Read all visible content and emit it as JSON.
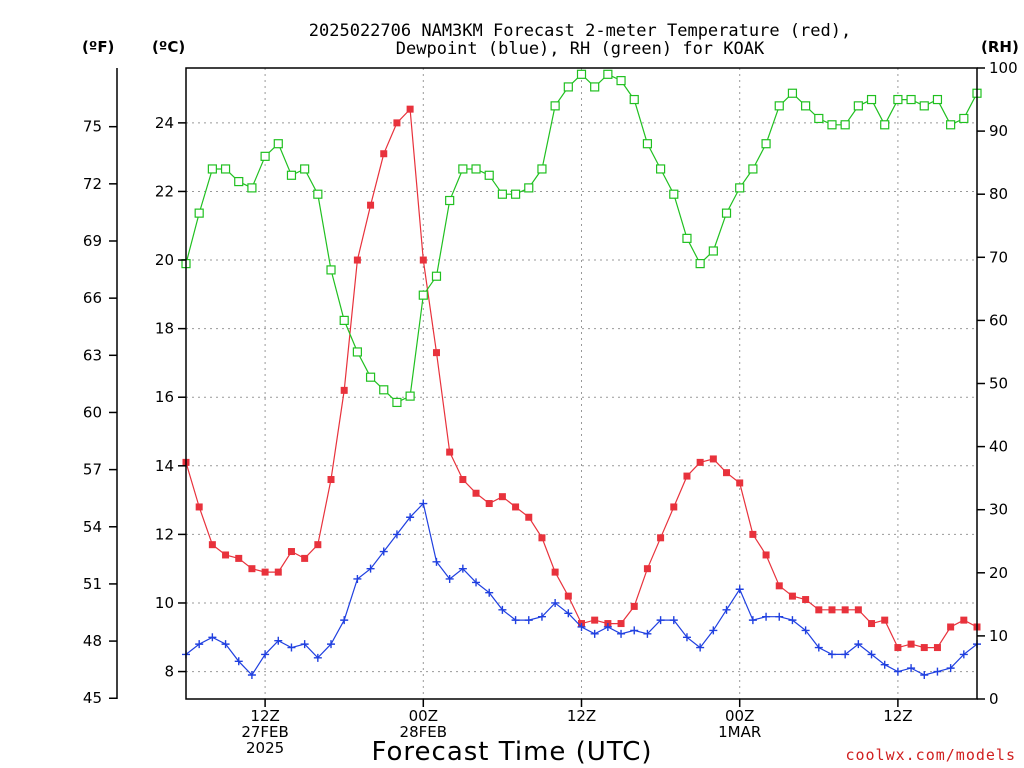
{
  "chart_data": {
    "type": "line",
    "title_line1": "2025022706 NAM3KM Forecast 2-meter Temperature (red),",
    "title_line2": "Dewpoint (blue), RH (green) for KOAK",
    "left_unit_f": "(ºF)",
    "left_unit_c": "(ºC)",
    "right_unit": "(RH)",
    "xlabel": "Forecast Time (UTC)",
    "credit": "coolwx.com/models",
    "x_range_hours": [
      6,
      66
    ],
    "celsius_range": [
      7.2,
      25.6
    ],
    "rh_range": [
      0,
      100
    ],
    "celsius_ticks": [
      8,
      10,
      12,
      14,
      16,
      18,
      20,
      22,
      24
    ],
    "fahrenheit_ticks": [
      45,
      48,
      51,
      54,
      57,
      60,
      63,
      66,
      69,
      72,
      75
    ],
    "rh_ticks": [
      0,
      10,
      20,
      30,
      40,
      50,
      60,
      70,
      80,
      90,
      100
    ],
    "x_ticks": [
      {
        "hour": 12,
        "lines": [
          "12Z",
          "27FEB",
          "2025"
        ]
      },
      {
        "hour": 24,
        "lines": [
          "00Z",
          "28FEB"
        ]
      },
      {
        "hour": 36,
        "lines": [
          "12Z"
        ]
      },
      {
        "hour": 48,
        "lines": [
          "00Z",
          "1MAR"
        ]
      },
      {
        "hour": 60,
        "lines": [
          "12Z"
        ]
      }
    ],
    "x": [
      6,
      7,
      8,
      9,
      10,
      11,
      12,
      13,
      14,
      15,
      16,
      17,
      18,
      19,
      20,
      21,
      22,
      23,
      24,
      25,
      26,
      27,
      28,
      29,
      30,
      31,
      32,
      33,
      34,
      35,
      36,
      37,
      38,
      39,
      40,
      41,
      42,
      43,
      44,
      45,
      46,
      47,
      48,
      49,
      50,
      51,
      52,
      53,
      54,
      55,
      56,
      57,
      58,
      59,
      60,
      61,
      62,
      63,
      64,
      65,
      66
    ],
    "series": [
      {
        "name": "Temperature",
        "unit": "C",
        "color": "#e8323c",
        "marker": "square-filled",
        "values": [
          14.1,
          12.8,
          11.7,
          11.4,
          11.3,
          11.0,
          10.9,
          10.9,
          11.5,
          11.3,
          11.7,
          13.6,
          16.2,
          20.0,
          21.6,
          23.1,
          24.0,
          24.4,
          20.0,
          17.3,
          14.4,
          13.6,
          13.2,
          12.9,
          13.1,
          12.8,
          12.5,
          11.9,
          10.9,
          10.2,
          9.4,
          9.5,
          9.4,
          9.4,
          9.9,
          11.0,
          11.9,
          12.8,
          13.7,
          14.1,
          14.2,
          13.8,
          13.5,
          12.0,
          11.4,
          10.5,
          10.2,
          10.1,
          9.8,
          9.8,
          9.8,
          9.8,
          9.4,
          9.5,
          8.7,
          8.8,
          8.7,
          8.7,
          9.3,
          9.5,
          9.3
        ]
      },
      {
        "name": "Dewpoint",
        "unit": "C",
        "color": "#2040e0",
        "marker": "plus",
        "values": [
          8.5,
          8.8,
          9.0,
          8.8,
          8.3,
          7.9,
          8.5,
          8.9,
          8.7,
          8.8,
          8.4,
          8.8,
          9.5,
          10.7,
          11.0,
          11.5,
          12.0,
          12.5,
          12.9,
          11.2,
          10.7,
          11.0,
          10.6,
          10.3,
          9.8,
          9.5,
          9.5,
          9.6,
          10.0,
          9.7,
          9.3,
          9.1,
          9.3,
          9.1,
          9.2,
          9.1,
          9.5,
          9.5,
          9.0,
          8.7,
          9.2,
          9.8,
          10.4,
          9.5,
          9.6,
          9.6,
          9.5,
          9.2,
          8.7,
          8.5,
          8.5,
          8.8,
          8.5,
          8.2,
          8.0,
          8.1,
          7.9,
          8.0,
          8.1,
          8.5,
          8.8
        ]
      },
      {
        "name": "RH",
        "unit": "%",
        "color": "#20c020",
        "marker": "square-open",
        "values": [
          69,
          77,
          84,
          84,
          82,
          81,
          86,
          88,
          83,
          84,
          80,
          68,
          60,
          55,
          51,
          49,
          47,
          48,
          64,
          67,
          79,
          84,
          84,
          83,
          80,
          80,
          81,
          84,
          94,
          97,
          99,
          97,
          99,
          98,
          95,
          88,
          84,
          80,
          73,
          69,
          71,
          77,
          81,
          84,
          88,
          94,
          96,
          94,
          92,
          91,
          91,
          94,
          95,
          91,
          95,
          95,
          94,
          95,
          91,
          92,
          96
        ]
      }
    ]
  }
}
